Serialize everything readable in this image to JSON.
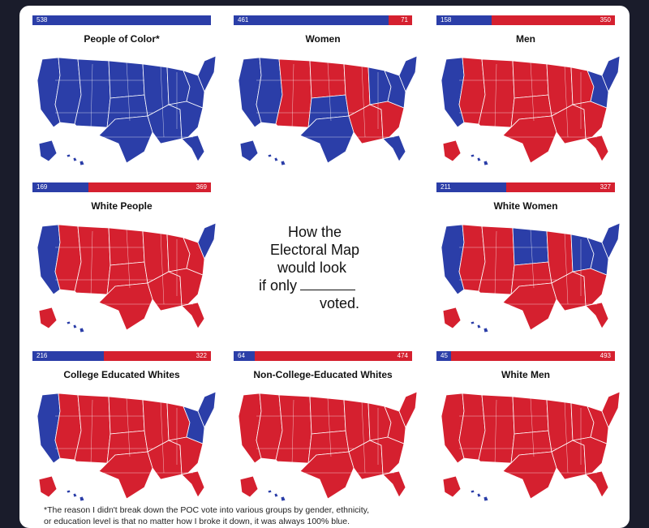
{
  "title_lines": [
    "How the",
    "Electoral Map",
    "would look",
    "if only",
    "voted."
  ],
  "footnote_lines": [
    "*The reason I didn't break down the POC vote into various groups by gender, ethnicity,",
    "or education level is that no matter how I broke it down, it was always 100% blue."
  ],
  "colors": {
    "dem": "#2b3ea8",
    "rep": "#d5202f",
    "border": "#ffffff"
  },
  "panels": [
    {
      "title": "People of Color*",
      "dem": "538",
      "rep": "",
      "dem_share": 1.0,
      "red_regions": []
    },
    {
      "title": "Women",
      "dem": "461",
      "rep": "71",
      "dem_share": 0.866,
      "red_regions": [
        "mountain",
        "plains_n",
        "south_c",
        "south_e",
        "midwest_c"
      ]
    },
    {
      "title": "Men",
      "dem": "158",
      "rep": "350",
      "dem_share": 0.311,
      "red_regions": [
        "west_interior",
        "mountain",
        "plains_n",
        "plains_s",
        "texas",
        "south_c",
        "south_e",
        "midwest_c",
        "midwest_e",
        "florida",
        "alaska"
      ]
    },
    {
      "title": "White People",
      "dem": "169",
      "rep": "369",
      "dem_share": 0.314,
      "red_regions": [
        "west_interior",
        "mountain",
        "plains_n",
        "plains_s",
        "texas",
        "south_c",
        "south_e",
        "midwest_c",
        "midwest_e",
        "florida",
        "alaska",
        "mid_atlantic"
      ]
    },
    {
      "title": "White Women",
      "dem": "211",
      "rep": "327",
      "dem_share": 0.392,
      "red_regions": [
        "west_interior",
        "mountain",
        "plains_s",
        "texas",
        "south_c",
        "south_e",
        "midwest_c",
        "florida",
        "alaska"
      ]
    },
    {
      "title": "College Educated Whites",
      "dem": "216",
      "rep": "322",
      "dem_share": 0.401,
      "red_regions": [
        "west_interior",
        "mountain",
        "plains_n",
        "plains_s",
        "texas",
        "south_c",
        "south_e",
        "midwest_c",
        "midwest_e",
        "florida",
        "alaska"
      ]
    },
    {
      "title": "Non-College-Educated Whites",
      "dem": "64",
      "rep": "474",
      "dem_share": 0.119,
      "red_regions": [
        "pacific",
        "west_interior",
        "mountain",
        "plains_n",
        "plains_s",
        "texas",
        "south_c",
        "south_e",
        "midwest_c",
        "midwest_e",
        "florida",
        "alaska",
        "mid_atlantic",
        "northeast"
      ]
    },
    {
      "title": "White Men",
      "dem": "45",
      "rep": "493",
      "dem_share": 0.084,
      "red_regions": [
        "pacific",
        "west_interior",
        "mountain",
        "plains_n",
        "plains_s",
        "texas",
        "south_c",
        "south_e",
        "midwest_c",
        "midwest_e",
        "florida",
        "alaska",
        "mid_atlantic",
        "northeast"
      ]
    }
  ]
}
